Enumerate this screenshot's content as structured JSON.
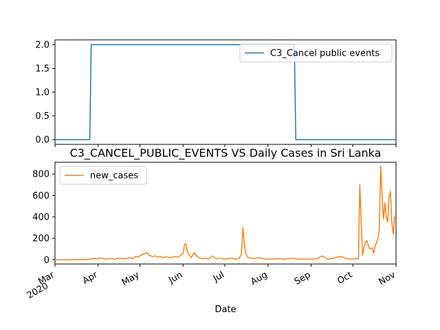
{
  "colors": {
    "top_series": "#1f77b4",
    "bottom_series": "#ff7f0e",
    "axes": "#000000",
    "legend_border": "#cccccc"
  },
  "chart_data": [
    {
      "type": "line",
      "title": "",
      "xlabel": "",
      "ylabel": "",
      "x_range_days": [
        0,
        245
      ],
      "ylim": [
        -0.1,
        2.1
      ],
      "y_ticks": [
        0.0,
        0.5,
        1.0,
        1.5,
        2.0
      ],
      "y_tick_labels": [
        "0.0",
        "0.5",
        "1.0",
        "1.5",
        "2.0"
      ],
      "x_tick_labels_shown": false,
      "legend": {
        "placement": "top-right",
        "entries": [
          "C3_Cancel public events"
        ]
      },
      "series": [
        {
          "name": "C3_Cancel public events",
          "x_days": [
            0,
            25,
            26,
            172,
            173,
            245
          ],
          "values": [
            0,
            0,
            2,
            2,
            0,
            0
          ]
        }
      ]
    },
    {
      "type": "line",
      "title": "C3_CANCEL_PUBLIC_EVENTS VS Daily Cases in Sri Lanka",
      "xlabel": "Date",
      "ylabel": "",
      "x_range_days": [
        0,
        245
      ],
      "ylim": [
        -40,
        910
      ],
      "y_ticks": [
        0,
        200,
        400,
        600,
        800
      ],
      "y_tick_labels": [
        "0",
        "200",
        "400",
        "600",
        "800"
      ],
      "x_ticks": [
        {
          "day": 0,
          "label": "Mar",
          "sublabel": "2020"
        },
        {
          "day": 31,
          "label": "Apr"
        },
        {
          "day": 61,
          "label": "May"
        },
        {
          "day": 92,
          "label": "Jun"
        },
        {
          "day": 122,
          "label": "Jul"
        },
        {
          "day": 153,
          "label": "Aug"
        },
        {
          "day": 184,
          "label": "Sep"
        },
        {
          "day": 214,
          "label": "Oct"
        },
        {
          "day": 245,
          "label": "Nov"
        }
      ],
      "legend": {
        "placement": "top-left",
        "entries": [
          "new_cases"
        ]
      },
      "series": [
        {
          "name": "new_cases",
          "x_days": [
            0,
            10,
            20,
            25,
            28,
            30,
            33,
            36,
            40,
            43,
            46,
            50,
            53,
            56,
            58,
            60,
            62,
            64,
            66,
            68,
            70,
            72,
            74,
            76,
            78,
            80,
            82,
            84,
            86,
            88,
            90,
            92,
            93,
            94,
            95,
            96,
            98,
            100,
            102,
            104,
            106,
            108,
            110,
            113,
            116,
            119,
            121,
            124,
            127,
            130,
            132,
            134,
            135,
            136,
            137,
            138,
            140,
            143,
            146,
            150,
            155,
            160,
            165,
            170,
            175,
            180,
            184,
            188,
            192,
            196,
            200,
            205,
            210,
            214,
            217,
            218,
            219,
            220,
            221,
            222,
            224,
            226,
            228,
            229,
            230,
            231,
            232,
            233,
            234,
            235,
            236,
            237,
            238,
            239,
            240,
            241,
            242,
            243,
            244,
            245
          ],
          "values": [
            0,
            0,
            2,
            4,
            14,
            8,
            18,
            6,
            12,
            4,
            15,
            8,
            18,
            12,
            30,
            25,
            45,
            55,
            65,
            40,
            30,
            35,
            25,
            30,
            20,
            28,
            18,
            22,
            30,
            25,
            35,
            60,
            140,
            150,
            80,
            50,
            20,
            65,
            30,
            15,
            10,
            15,
            5,
            35,
            8,
            15,
            5,
            10,
            15,
            5,
            10,
            50,
            300,
            150,
            60,
            30,
            15,
            10,
            20,
            8,
            5,
            10,
            5,
            15,
            5,
            8,
            5,
            10,
            35,
            5,
            15,
            30,
            10,
            5,
            10,
            5,
            700,
            350,
            40,
            120,
            180,
            100,
            110,
            60,
            130,
            160,
            200,
            280,
            870,
            600,
            380,
            530,
            400,
            350,
            580,
            640,
            350,
            240,
            400,
            380
          ]
        }
      ]
    }
  ]
}
